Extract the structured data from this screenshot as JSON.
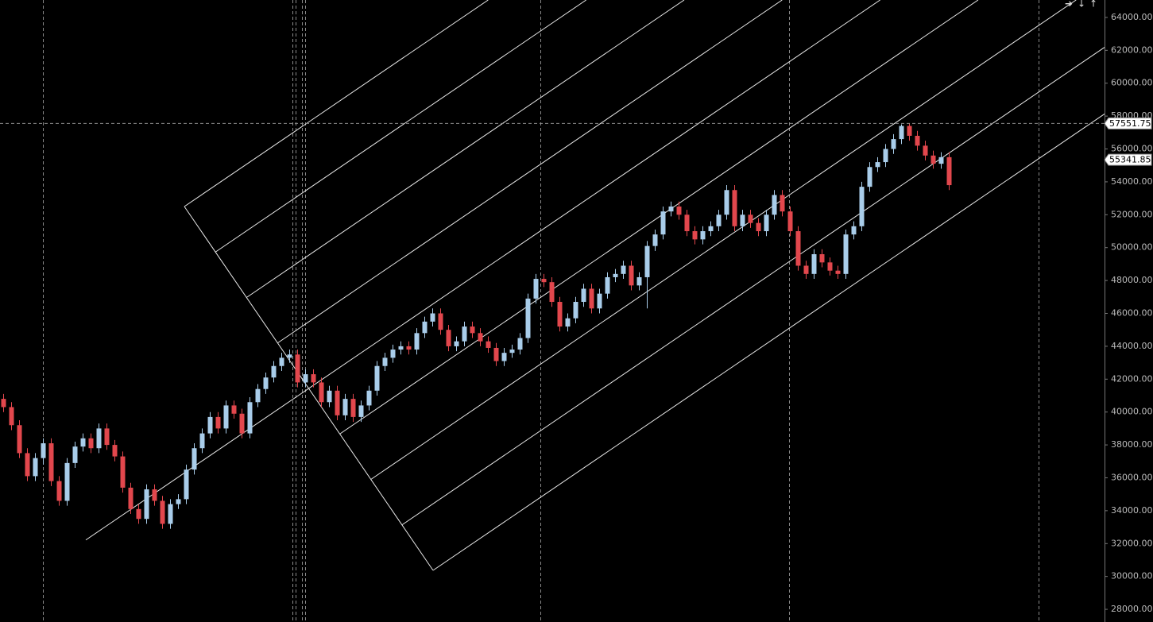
{
  "chart_data": {
    "type": "candlestick",
    "up_color": "#a9cdea",
    "down_color": "#e2474d",
    "ylim": [
      27230,
      65060
    ],
    "yticks": [
      {
        "value": 28000,
        "label": "28000.00"
      },
      {
        "value": 30000,
        "label": "30000.00"
      },
      {
        "value": 32000,
        "label": "32000.00"
      },
      {
        "value": 34000,
        "label": "34000.00"
      },
      {
        "value": 36000,
        "label": "36000.00"
      },
      {
        "value": 38000,
        "label": "38000.00"
      },
      {
        "value": 40000,
        "label": "40000.00"
      },
      {
        "value": 42000,
        "label": "42000.00"
      },
      {
        "value": 44000,
        "label": "44000.00"
      },
      {
        "value": 46000,
        "label": "46000.00"
      },
      {
        "value": 48000,
        "label": "48000.00"
      },
      {
        "value": 50000,
        "label": "50000.00"
      },
      {
        "value": 52000,
        "label": "52000.00"
      },
      {
        "value": 54000,
        "label": "54000.00"
      },
      {
        "value": 56000,
        "label": "56000.00"
      },
      {
        "value": 58000,
        "label": "58000.00"
      },
      {
        "value": 60000,
        "label": "60000.00"
      },
      {
        "value": 62000,
        "label": "62000.00"
      },
      {
        "value": 64000,
        "label": "64000.00"
      }
    ],
    "crosshair": 57551.75,
    "last_price": 55341.85,
    "open": [
      40800,
      40300,
      39200,
      37500,
      36100,
      37200,
      38100,
      35800,
      34600,
      36900,
      37900,
      38400,
      37800,
      39000,
      38000,
      37300,
      35400,
      34100,
      33500,
      35300,
      34600,
      33200,
      34400,
      34700,
      36500,
      37800,
      38700,
      39700,
      39000,
      40400,
      39900,
      38700,
      40600,
      41400,
      42100,
      42800,
      43300,
      43500,
      41800,
      42300,
      41800,
      40600,
      41300,
      39800,
      40800,
      39700,
      40400,
      41300,
      42800,
      43300,
      43800,
      44000,
      43800,
      44800,
      45500,
      46000,
      45000,
      44000,
      44300,
      45200,
      44800,
      44300,
      43900,
      43100,
      43600,
      43800,
      44500,
      46900,
      48100,
      47900,
      46700,
      45200,
      45700,
      46700,
      47500,
      46300,
      47200,
      48200,
      48400,
      48900,
      47700,
      48200,
      50100,
      50800,
      52200,
      52500,
      52000,
      51000,
      50500,
      51000,
      51300,
      52000,
      53500,
      51300,
      52000,
      51500,
      51000,
      52000,
      53200,
      52200,
      51000,
      48900,
      48400,
      49600,
      49100,
      48600,
      48400,
      50800,
      51300,
      53700,
      54900,
      55200,
      56000,
      56600,
      57400,
      56800,
      56200,
      55600,
      55100,
      55500
    ],
    "high": [
      41100,
      40600,
      39500,
      37800,
      37500,
      38400,
      38400,
      36100,
      37200,
      38200,
      38700,
      38700,
      39300,
      39300,
      38300,
      37600,
      35700,
      34400,
      35600,
      35600,
      34900,
      34700,
      35000,
      36800,
      38100,
      39000,
      40000,
      40000,
      40700,
      40700,
      40200,
      40900,
      41700,
      42400,
      43100,
      43600,
      43800,
      43800,
      42600,
      42600,
      42100,
      41600,
      41600,
      41100,
      41100,
      40700,
      41600,
      43100,
      43600,
      44100,
      44300,
      44300,
      45100,
      45800,
      46300,
      46300,
      45300,
      44600,
      45500,
      45500,
      45100,
      44600,
      44200,
      43900,
      44100,
      44800,
      47200,
      48400,
      48400,
      48200,
      47000,
      46000,
      47000,
      47800,
      47800,
      47500,
      48500,
      48700,
      49200,
      49200,
      48500,
      50400,
      51100,
      52500,
      52800,
      52800,
      52300,
      51300,
      51300,
      51600,
      52300,
      53800,
      53800,
      52300,
      52300,
      51800,
      52300,
      53500,
      53500,
      52500,
      51300,
      49200,
      49900,
      49900,
      49400,
      48900,
      51100,
      51600,
      54000,
      55200,
      55500,
      56300,
      56900,
      57500,
      57550,
      57100,
      56500,
      55900,
      55800,
      55800
    ],
    "low": [
      40000,
      38900,
      37200,
      35800,
      35800,
      36800,
      35500,
      34300,
      34300,
      36600,
      37600,
      37500,
      37500,
      37700,
      37000,
      35100,
      33800,
      33200,
      33200,
      34300,
      32900,
      32900,
      34100,
      34400,
      36200,
      37500,
      38400,
      38700,
      38700,
      39600,
      38400,
      38400,
      40300,
      41100,
      41800,
      42500,
      43000,
      41500,
      41500,
      41500,
      40300,
      40300,
      39500,
      39500,
      39400,
      39400,
      40100,
      41000,
      42500,
      43000,
      43500,
      43500,
      43500,
      44500,
      45200,
      44700,
      43700,
      43700,
      44000,
      44500,
      44000,
      43600,
      42800,
      42800,
      43300,
      43500,
      44200,
      46600,
      47600,
      46400,
      44900,
      44900,
      45400,
      46400,
      46000,
      46000,
      46900,
      47900,
      48100,
      47400,
      47400,
      46300,
      49800,
      50500,
      51900,
      51700,
      50700,
      50200,
      50200,
      50700,
      51000,
      51700,
      51000,
      51000,
      51200,
      50700,
      50700,
      51700,
      51900,
      50700,
      48600,
      48100,
      48100,
      48800,
      48300,
      48100,
      48100,
      50500,
      51000,
      53400,
      54600,
      54900,
      55700,
      56300,
      56500,
      55900,
      55300,
      54800,
      54800,
      53500
    ],
    "close": [
      40300,
      39200,
      37500,
      36100,
      37200,
      38100,
      35800,
      34600,
      36900,
      37900,
      38400,
      37800,
      39000,
      38000,
      37300,
      35400,
      34100,
      33500,
      35300,
      34600,
      33200,
      34400,
      34700,
      36500,
      37800,
      38700,
      39700,
      39000,
      40400,
      39900,
      38700,
      40600,
      41400,
      42100,
      42800,
      43300,
      43500,
      41800,
      42300,
      41800,
      40600,
      41300,
      39800,
      40800,
      39700,
      40400,
      41300,
      42800,
      43300,
      43800,
      44000,
      43800,
      44800,
      45500,
      46000,
      45000,
      44000,
      44300,
      45200,
      44800,
      44300,
      43900,
      43100,
      43600,
      43800,
      44500,
      46900,
      48100,
      47900,
      46700,
      45200,
      45700,
      46700,
      47500,
      46300,
      47200,
      48200,
      48400,
      48900,
      47700,
      48200,
      50100,
      50800,
      52200,
      52500,
      52000,
      51000,
      50500,
      51000,
      51300,
      52000,
      53500,
      51300,
      52000,
      51500,
      51000,
      52000,
      53200,
      52200,
      51000,
      48900,
      48400,
      49600,
      49100,
      48600,
      48400,
      50800,
      51300,
      53700,
      54900,
      55200,
      56000,
      56600,
      57400,
      56800,
      56200,
      55600,
      55100,
      55500,
      53800
    ]
  }
}
